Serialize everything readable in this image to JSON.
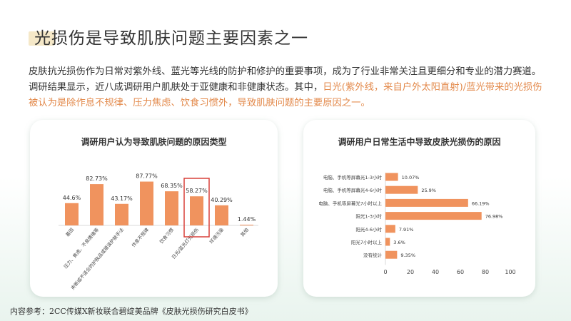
{
  "title": "光损伤是导致肌肤问题主要因素之一",
  "paragraph": {
    "part1": "皮肤抗光损伤作为日常对紫外线、蓝光等光线的防护和修护的重要事项，成为了行业非常关注且更细分和专业的潜力赛道。调研结果显示，近八成调研用户肌肤处于亚健康和非健康状态。其中，",
    "highlight1": "日光(紫外线，来自户外太阳直射)/蓝光带来的光损伤被认为是除作息不规律、压力焦虑、饮食习惯外，导致肌肤问题的主要原因之一。"
  },
  "source": "内容参考：2CC传媒X新妆联合碧绽美品牌《皮肤光损伤研究白皮书》",
  "colors": {
    "bar": "#f0935e",
    "highlight_box": "#d9413a",
    "accent_text": "#e38a4c"
  },
  "chart_data": [
    {
      "type": "bar",
      "title": "调研用户认为导致肌肤问题的原因类型",
      "categories": [
        "基因",
        "压力、焦虑、不良情绪等",
        "夹断或不适合的护肤品或错误护肤手法",
        "作息不规律",
        "饮食习惯",
        "日光/蓝光灯光损伤",
        "环境污染",
        "其他"
      ],
      "values": [
        44.6,
        82.73,
        43.17,
        87.77,
        68.35,
        58.27,
        40.29,
        1.44
      ],
      "value_labels": [
        "44.6%",
        "82.73%",
        "43.17%",
        "87.77%",
        "68.35%",
        "58.27%",
        "40.29%",
        "1.44%"
      ],
      "highlighted_index": 5,
      "ylim": [
        0,
        100
      ],
      "grid": false
    },
    {
      "type": "bar",
      "orientation": "horizontal",
      "title": "调研用户日常生活中导致皮肤光损伤的原因",
      "categories": [
        "电脑、手机等屏幕光1-3小时",
        "电脑、手机等屏幕光4-6小时",
        "电脑、手机等屏幕光7小时以上",
        "阳光1-3小时",
        "阳光4-6小时",
        "阳光7小时以上",
        "没有统计"
      ],
      "values": [
        10.07,
        25.9,
        66.19,
        76.98,
        7.91,
        3.6,
        9.35
      ],
      "value_labels": [
        "10.07%",
        "25.9%",
        "66.19%",
        "76.98%",
        "7.91%",
        "3.6%",
        "9.35%"
      ],
      "xlim": [
        0,
        100
      ],
      "xticks": [
        "0",
        "20",
        "40",
        "60",
        "80",
        "100"
      ],
      "grid": false
    }
  ]
}
